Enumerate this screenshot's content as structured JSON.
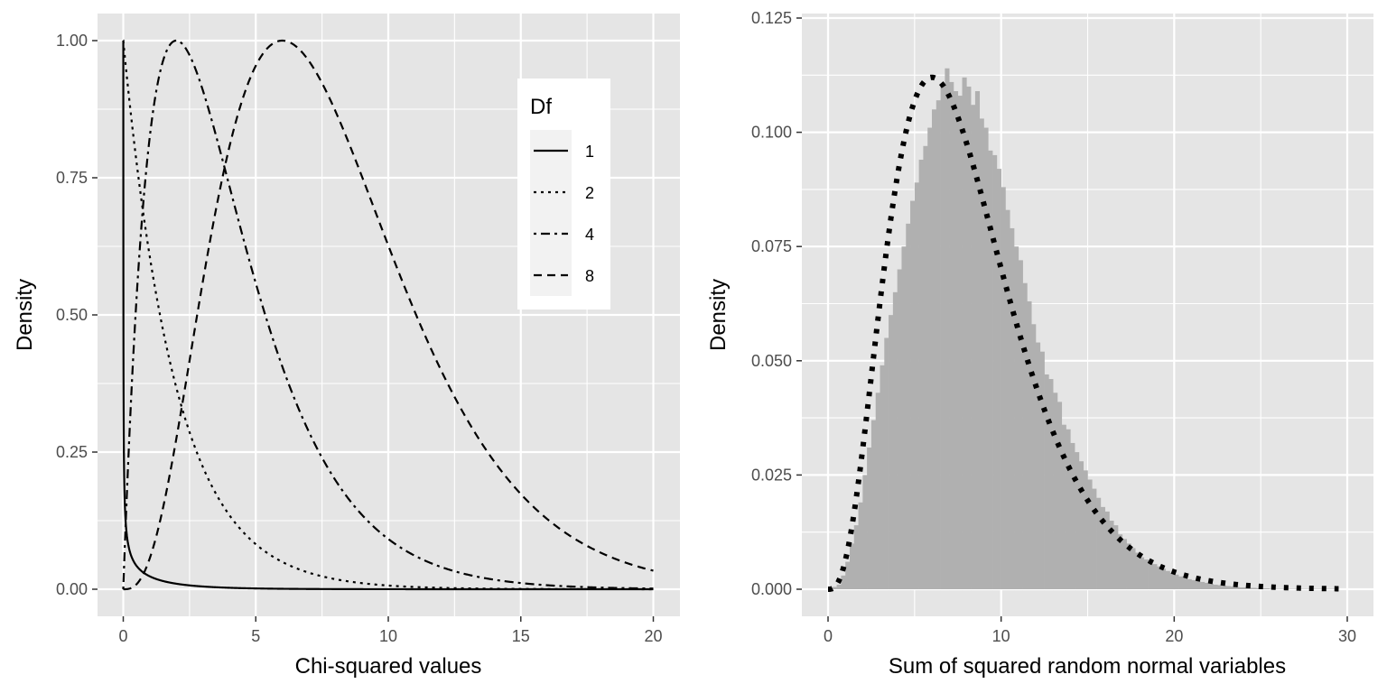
{
  "colors": {
    "panel_background": "#e5e5e5",
    "grid_line": "#ffffff",
    "line": "#000000",
    "histogram_fill": "#b0b0b0",
    "tick_text": "#4d4d4d"
  },
  "chart_data": [
    {
      "type": "line",
      "xlabel": "Chi-squared values",
      "ylabel": "Density",
      "xlim": [
        0,
        20
      ],
      "ylim": [
        0,
        1
      ],
      "x_ticks": [
        0,
        5,
        10,
        15,
        20
      ],
      "x_tick_labels": [
        "0",
        "5",
        "10",
        "15",
        "20"
      ],
      "y_ticks": [
        0,
        0.25,
        0.5,
        0.75,
        1
      ],
      "y_tick_labels": [
        "0.00",
        "0.25",
        "0.50",
        "0.75",
        "1.00"
      ],
      "grid": true,
      "normalization": "each curve scaled so its maximum density equals 1",
      "legend": {
        "title": "Df",
        "position": "top-right",
        "entries": [
          "1",
          "2",
          "4",
          "8"
        ],
        "linetypes": [
          "solid",
          "dotted",
          "dotdash",
          "dashed"
        ]
      },
      "series": [
        {
          "name": "1",
          "df": 1,
          "linetype": "solid"
        },
        {
          "name": "2",
          "df": 2,
          "linetype": "dotted"
        },
        {
          "name": "4",
          "df": 4,
          "linetype": "dotdash"
        },
        {
          "name": "8",
          "df": 8,
          "linetype": "dashed"
        }
      ]
    },
    {
      "type": "bar",
      "subtype": "histogram with overlaid density curve",
      "xlabel": "Sum of squared random normal variables",
      "ylabel": "Density",
      "xlim": [
        0,
        30
      ],
      "ylim": [
        0,
        0.125
      ],
      "x_ticks": [
        0,
        10,
        20,
        30
      ],
      "x_tick_labels": [
        "0",
        "10",
        "20",
        "30"
      ],
      "y_ticks": [
        0,
        0.025,
        0.05,
        0.075,
        0.1,
        0.125
      ],
      "y_tick_labels": [
        "0.000",
        "0.025",
        "0.050",
        "0.075",
        "0.100",
        "0.125"
      ],
      "grid": true,
      "histogram": {
        "bin_width": 0.25,
        "bin_start": 0,
        "densities": [
          0,
          0.0005,
          0.001,
          0.003,
          0.006,
          0.01,
          0.014,
          0.019,
          0.025,
          0.031,
          0.037,
          0.043,
          0.049,
          0.055,
          0.06,
          0.065,
          0.07,
          0.075,
          0.08,
          0.085,
          0.089,
          0.094,
          0.097,
          0.101,
          0.105,
          0.107,
          0.11,
          0.114,
          0.111,
          0.109,
          0.108,
          0.112,
          0.11,
          0.106,
          0.109,
          0.103,
          0.101,
          0.096,
          0.095,
          0.092,
          0.088,
          0.083,
          0.079,
          0.075,
          0.072,
          0.067,
          0.063,
          0.058,
          0.054,
          0.052,
          0.047,
          0.046,
          0.043,
          0.041,
          0.036,
          0.035,
          0.032,
          0.03,
          0.028,
          0.026,
          0.024,
          0.022,
          0.02,
          0.018,
          0.017,
          0.015,
          0.014,
          0.012,
          0.011,
          0.01,
          0.009,
          0.008,
          0.007,
          0.0065,
          0.006,
          0.0055,
          0.005,
          0.0045,
          0.004,
          0.0036,
          0.0032,
          0.0028,
          0.0025,
          0.0022,
          0.002,
          0.0018,
          0.0016,
          0.0014,
          0.0012,
          0.001,
          0.0009,
          0.0008,
          0.0007,
          0.0006,
          0.0005,
          0.0004,
          0.0004,
          0.0003,
          0.0003,
          0.0002,
          0.0002,
          0.0002,
          0.0001,
          0.0001,
          0.0001,
          0.0001,
          0.0001,
          0.0001,
          0.0001,
          0.0001,
          0.0001,
          0.0001,
          0.0001,
          0.0001,
          0.0001,
          0.0001,
          0.0001,
          0.0001
        ]
      },
      "density_curve": {
        "distribution": "chi-squared",
        "df": 8,
        "linetype": "dotted",
        "x_range": [
          0,
          29.5
        ]
      }
    }
  ]
}
